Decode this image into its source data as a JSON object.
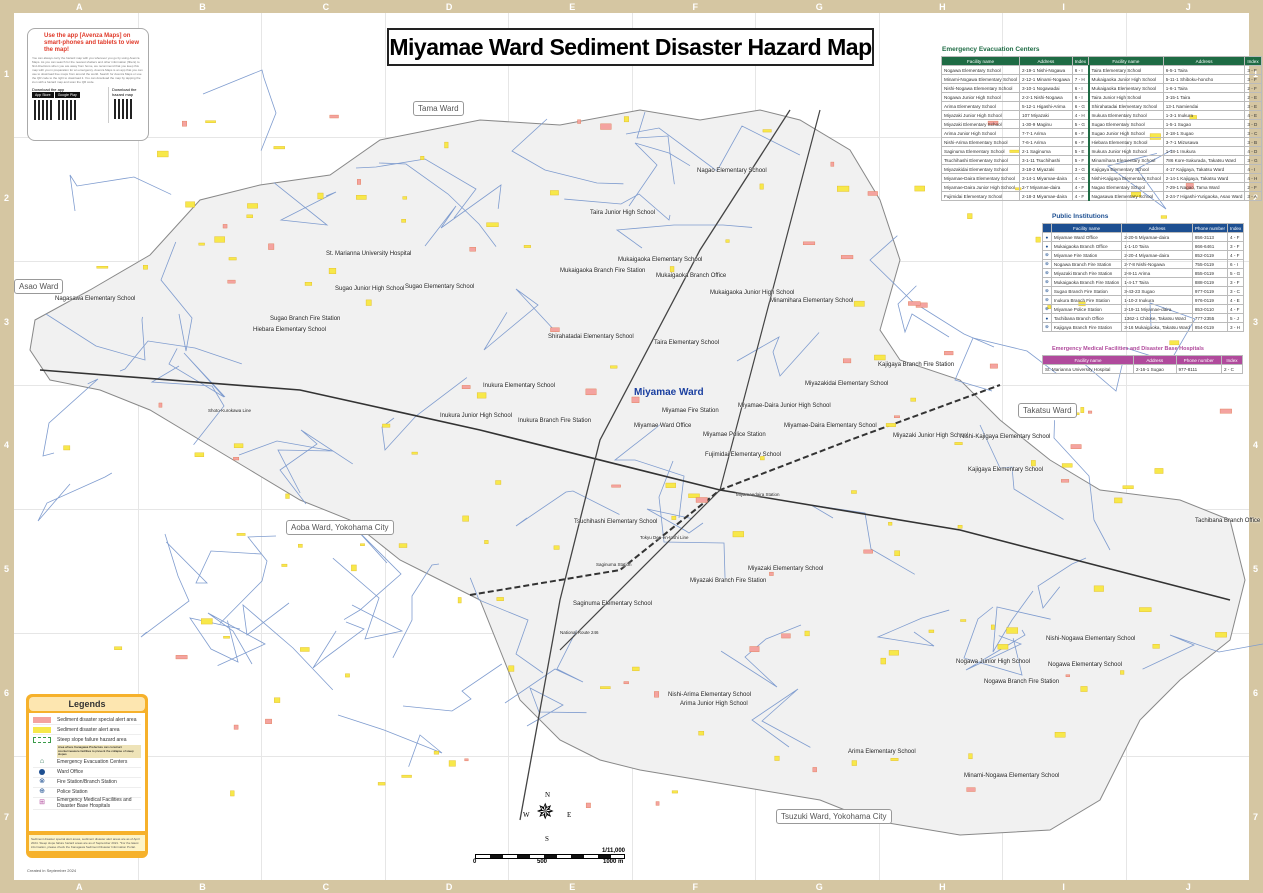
{
  "title": "Miyamae Ward Sediment Disaster Hazard Map",
  "grid": {
    "columns": [
      "A",
      "B",
      "C",
      "D",
      "E",
      "F",
      "G",
      "H",
      "I",
      "J"
    ],
    "rows": [
      "1",
      "2",
      "3",
      "4",
      "5",
      "6",
      "7"
    ]
  },
  "app_box": {
    "heading": "Use the app [Avenza Maps] on smart-phones and tablets to view the map!",
    "body": "You can always carry the hazard map with you wherever you go by using Avenza Maps. As you can search for the nearest shelters and other information (filters) to find directions when you are away from home, we recommend that you keep this map with you in preparation for an emergency. Avenza Maps is an app that you can use to download free maps from around the world. Search for Avenza Maps or use the QR code to the right to download it. You can download the map by tapping the icon with a hazard map and scan the QR code.",
    "download_app": "Download the app",
    "download_map": "Download the hazard map",
    "app_store": "App Store",
    "google_play": "Google Play"
  },
  "areas": {
    "tama": "Tama Ward",
    "asao": "Asao Ward",
    "takatsu": "Takatsu Ward",
    "aoba": "Aoba Ward, Yokohama City",
    "tsuzuki": "Tsuzuki Ward, Yokohama City",
    "miyamae": "Miyamae Ward"
  },
  "map_labels": [
    "Nagao Elementary School",
    "Taira Junior High School",
    "St. Marianna University Hospital",
    "Mukaigaoka Elementary School",
    "Mukaigaoka Branch Fire Station",
    "Mukaigaoka Branch Office",
    "Sugao Junior High School",
    "Sugao Elementary School",
    "Nagasawa Elementary School",
    "Mukaigaoka Junior High School",
    "Sugao Branch Fire Station",
    "Hiebara Elementary School",
    "Minamihara Elementary School",
    "Shirahatadai Elementary School",
    "Taira Elementary School",
    "Kajigaya Branch Fire Station",
    "Miyazakidai Elementary School",
    "Inukura Elementary School",
    "Miyamae Fire Station",
    "Miyamae-Daira Junior High School",
    "Inukura Junior High School",
    "Inukura Branch Fire Station",
    "Miyamae Ward Office",
    "Miyamae-Daira Elementary School",
    "Miyamae Police Station",
    "Miyazaki Junior High School",
    "Nishi-Kajigaya Elementary School",
    "Fujimidai Elementary School",
    "Kajigaya Elementary School",
    "Tsuchihashi Elementary School",
    "Tachibana Branch Office",
    "Miyazaki Elementary School",
    "Miyazaki Branch Fire Station",
    "Saginuma Elementary School",
    "Nishi-Nogawa Elementary School",
    "Nogawa Junior High School",
    "Nogawa Elementary School",
    "Nogawa Branch Fire Station",
    "Nishi-Arima Elementary School",
    "Arima Junior High School",
    "Arima Elementary School",
    "Minami-Nogawa Elementary School",
    "Miyamaedaira Station",
    "Saginuma Station",
    "Tokyu Den-en-toshi Line",
    "National Route 246",
    "Shoto-Kurokawa Line"
  ],
  "evacuation": {
    "title": "Emergency Evacuation Centers",
    "headers": [
      "Facility name",
      "Address",
      "Index",
      "Facility name",
      "Address",
      "Index"
    ],
    "rows": [
      [
        "Nogawa Elementary School",
        "2-19-1 Nishi-Nogawa",
        "6 - I",
        "Taira Elementary School",
        "6-5-1 Taira",
        "3 - F"
      ],
      [
        "Minami-Nogawa Elementary School",
        "2-12-1 Minami-Nogawa",
        "7 - H",
        "Mukaigaoka Junior High School",
        "5-11-1 Shiboku-honcho",
        "3 - F"
      ],
      [
        "Nishi-Nogawa Elementary School",
        "3-10-1 Nogawadai",
        "6 - I",
        "Mukaigaoka Elementary School",
        "1-6-1 Taira",
        "2 - F"
      ],
      [
        "Nogawa Junior High School",
        "2-2-1 Nishi-Nogawa",
        "6 - I",
        "Taira Junior High School",
        "3-15-1 Taira",
        "2 - E"
      ],
      [
        "Arima Elementary School",
        "5-12-1 Higashi-Arima",
        "6 - G",
        "Shirahatadai Elementary School",
        "13-1 Namiendai",
        "3 - E"
      ],
      [
        "Miyazaki Junior High School",
        "107 Miyazaki",
        "4 - H",
        "Inukura Elementary School",
        "1-3-1 Inukura",
        "4 - E"
      ],
      [
        "Miyazaki Elementary School",
        "1-30-9 Maginu",
        "5 - G",
        "Sugao Elementary School",
        "1-5-1 Sugao",
        "3 - D"
      ],
      [
        "Arima Junior High School",
        "7-7-1 Arima",
        "6 - F",
        "Sugao Junior High School",
        "2-18-1 Sugao",
        "3 - C"
      ],
      [
        "Nishi-Arima Elementary School",
        "7-6-1 Arima",
        "6 - F",
        "Hiebara Elementary School",
        "3-7-1 Mizusawa",
        "3 - B"
      ],
      [
        "Saginuma Elementary School",
        "2-1 Saginuma",
        "5 - E",
        "Inukura Junior High School",
        "1-18-1 Inukura",
        "4 - D"
      ],
      [
        "Tsuchihashi Elementary School",
        "3-1-11 Tsuchihashi",
        "5 - F",
        "Minamihara Elementary School",
        "786 Kore-Sakurada, Takatsu Ward",
        "3 - G"
      ],
      [
        "Miyazakidai Elementary School",
        "3-18-2 Miyazaki",
        "3 - G",
        "Kajigaya Elementary School",
        "4-17 Kajigaya, Takatsu Ward",
        "4 - I"
      ],
      [
        "Miyamae-Daira Elementary School",
        "3-14-1 Miyamae-daira",
        "4 - G",
        "Nishi-Kajigaya Elementary School",
        "2-14-1 Kajigaya, Takatsu Ward",
        "4 - H"
      ],
      [
        "Miyamae-Daira Junior High School",
        "2-7 Miyamae-daira",
        "4 - F",
        "Nagao Elementary School",
        "7-29-1 Nagao, Tama Ward",
        "2 - F"
      ],
      [
        "Fujimidai Elementary School",
        "2-18-3 Miyamae-daira",
        "4 - F",
        "Nagasawa Elementary School",
        "2-24-7 Higashi-Yurigaoka, Asao Ward",
        "3 - A"
      ]
    ]
  },
  "public": {
    "title": "Public Institutions",
    "headers": [
      "",
      "Facility name",
      "Address",
      "Phone number",
      "Index"
    ],
    "rows": [
      [
        "ward-office",
        "Miyamae Ward Office",
        "2-20-5 Miyamae-daira",
        "856-3113",
        "4 - F"
      ],
      [
        "ward-office",
        "Mukaigaoka Branch Office",
        "1-1-10 Taira",
        "866-6461",
        "3 - F"
      ],
      [
        "fire",
        "Miyamae Fire Station",
        "2-20-4 Miyamae-daira",
        "852-0119",
        "4 - F"
      ],
      [
        "fire",
        "Nogawa Branch Fire Station",
        "2-7-8 Nishi-Nogawa",
        "755-0119",
        "6 - I"
      ],
      [
        "fire",
        "Miyazaki Branch Fire Station",
        "2-8-11 Arima",
        "855-0119",
        "5 - G"
      ],
      [
        "fire",
        "Mukaigaoka Branch Fire Station",
        "1-4-17 Taira",
        "888-0119",
        "3 - F"
      ],
      [
        "fire",
        "Sugao Branch Fire Station",
        "3-43-23 Sugao",
        "977-0119",
        "3 - C"
      ],
      [
        "fire",
        "Inukura Branch Fire Station",
        "1-10-2 Inukura",
        "976-0119",
        "4 - E"
      ],
      [
        "police",
        "Miyamae Police Station",
        "2-19-11 Miyamae-daira",
        "853-0110",
        "4 - F"
      ],
      [
        "ward-office",
        "Tachibana Branch Office",
        "1362-1 Chitose, Takatsu Ward",
        "777-2355",
        "5 - J"
      ],
      [
        "fire",
        "Kajigaya Branch Fire Station",
        "3-16 Mukaigaoka, Takatsu Ward",
        "854-0119",
        "3 - H"
      ]
    ]
  },
  "medical": {
    "title": "Emergency Medical Facilities and Disaster Base Hospitals",
    "headers": [
      "Facility name",
      "Address",
      "Phone number",
      "Index"
    ],
    "rows": [
      [
        "St. Marianna University Hospital",
        "2-16-1 Sugao",
        "977-8111",
        "2 - C"
      ]
    ]
  },
  "legend": {
    "title": "Legends",
    "items": [
      "Sediment disaster special alert area",
      "Sediment disaster alert area",
      "Steep slope failure hazard area",
      "Emergency Evacuation Centers",
      "Ward Office",
      "Fire Station/Branch Station",
      "Police Station",
      "Emergency Medical Facilities and Disaster Base Hospitals"
    ],
    "steep_note": "Area where Kanagawa Prefecture can construct countermeasure facilities to prevent the collapse of steep slopes",
    "footnote": "Sediment disaster special alert areas, sediment disaster alert areas are as of April 2024. Steep slope failure hazard areas are as of September 2021. *For the latest information, please check the Kanagawa Sediment Disaster Information Portal."
  },
  "created": "Created in September 2024",
  "compass": {
    "n": "N",
    "s": "S",
    "e": "E",
    "w": "W"
  },
  "scale": {
    "ratio": "1/11,000",
    "ticks": [
      "0",
      "500",
      "1000 m"
    ]
  },
  "colors": {
    "frame": "#d5c6a2",
    "evacuation": "#1e6b44",
    "public": "#1d4f91",
    "medical": "#b04a9c",
    "special_alert": "#f4a3a0",
    "alert": "#f7e84a",
    "steep": "#3a9b4a"
  }
}
